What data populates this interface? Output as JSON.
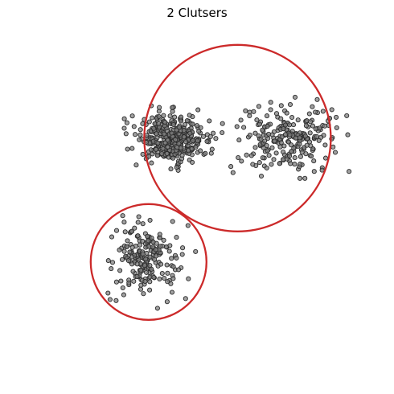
{
  "chart_data": {
    "type": "scatter",
    "title": "2 Clutsers",
    "xlabel": "",
    "ylabel": "",
    "xlim": [
      -10.5,
      10.5
    ],
    "ylim": [
      -10.5,
      10.5
    ],
    "axes_visible": false,
    "grid": false,
    "point_fill": "#808080",
    "point_stroke": "#2b2b2b",
    "circle_color": "#cc2a2a",
    "clusters": [
      {
        "count": 360,
        "center": [
          -3.0,
          3.7
        ],
        "spread": [
          1.1,
          0.75
        ]
      },
      {
        "count": 230,
        "center": [
          4.3,
          3.8
        ],
        "spread": [
          1.6,
          1.05
        ]
      },
      {
        "count": 210,
        "center": [
          -4.5,
          -3.8
        ],
        "spread": [
          1.05,
          1.05
        ]
      }
    ],
    "fitted_circles": [
      {
        "center": [
          1.17,
          3.76
        ],
        "radius": 5.8
      },
      {
        "center": [
          -4.36,
          -3.94
        ],
        "radius": 3.6
      }
    ]
  }
}
